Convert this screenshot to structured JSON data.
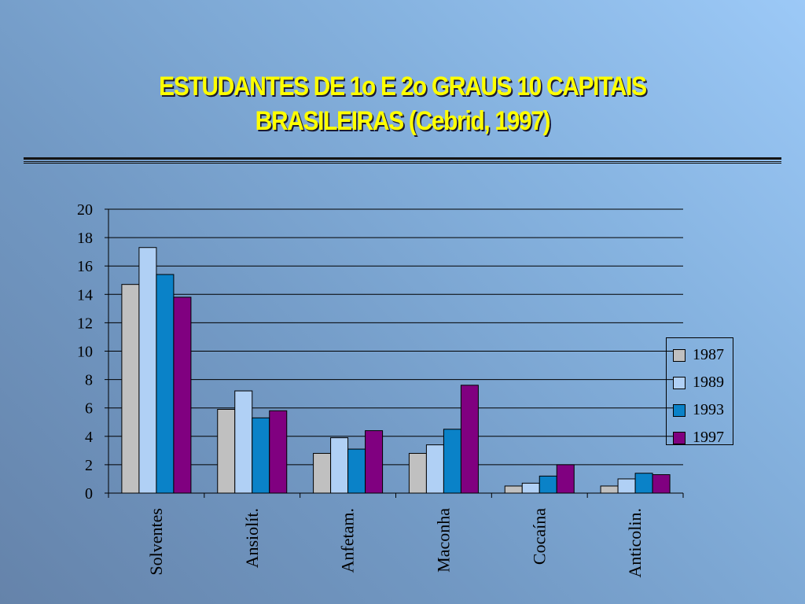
{
  "slide": {
    "title_line1": "ESTUDANTES DE 1o  E 2o GRAUS 10 CAPITAIS",
    "title_line2": "BRASILEIRAS (Cebrid, 1997)"
  },
  "chart_data": {
    "type": "bar",
    "title": "",
    "xlabel": "",
    "ylabel": "",
    "categories": [
      "Solventes",
      "Ansiolít.",
      "Anfetam.",
      "Maconha",
      "Cocaína",
      "Anticolin."
    ],
    "series": [
      {
        "name": "1987",
        "color": "#c0c0c0",
        "values": [
          14.7,
          5.9,
          2.8,
          2.8,
          0.5,
          0.5
        ]
      },
      {
        "name": "1989",
        "color": "#b0d0f5",
        "values": [
          17.3,
          7.2,
          3.9,
          3.4,
          0.7,
          1.0
        ]
      },
      {
        "name": "1993",
        "color": "#0a82c8",
        "values": [
          15.4,
          5.3,
          3.1,
          4.5,
          1.2,
          1.4
        ]
      },
      {
        "name": "1997",
        "color": "#800080",
        "values": [
          13.8,
          5.8,
          4.4,
          7.6,
          2.0,
          1.3
        ]
      }
    ],
    "ylim": [
      0,
      20
    ],
    "yticks": [
      0,
      2,
      4,
      6,
      8,
      10,
      12,
      14,
      16,
      18,
      20
    ],
    "grid": true,
    "legend_position": "right"
  }
}
